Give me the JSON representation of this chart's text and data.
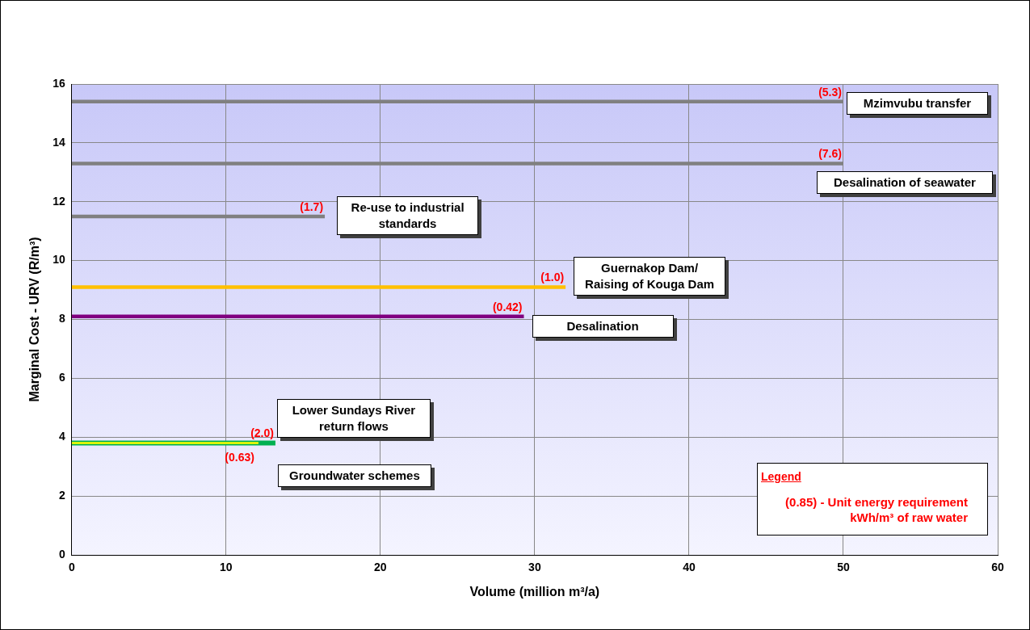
{
  "chart_data": {
    "type": "line",
    "xlabel": "Volume (million m³/a)",
    "ylabel": "Marginal Cost - URV (R/m³)",
    "xlim": [
      0,
      60
    ],
    "xticks": [
      0,
      10,
      20,
      30,
      40,
      50,
      60
    ],
    "ylim": [
      0,
      16
    ],
    "yticks": [
      0,
      2,
      4,
      6,
      8,
      10,
      12,
      14,
      16
    ],
    "grid": true,
    "legend": false,
    "marker": "none",
    "line_style": "solid",
    "series": [
      {
        "name": "Mzimvubu transfer",
        "color": "#808080",
        "x": [
          0,
          50
        ],
        "values": [
          15.4,
          15.4
        ]
      },
      {
        "name": "Desalination of seawater",
        "color": "#808080",
        "x": [
          0,
          50
        ],
        "values": [
          13.3,
          13.3
        ]
      },
      {
        "name": "Re-use to industrial standards",
        "color": "#808080",
        "x": [
          0,
          16.4
        ],
        "values": [
          11.5,
          11.5
        ]
      },
      {
        "name": "Guernakop Dam/ Raising of Kouga Dam",
        "color": "#ffc000",
        "x": [
          0,
          32
        ],
        "values": [
          9.1,
          9.1
        ]
      },
      {
        "name": "Desalination",
        "color": "#800080",
        "x": [
          0,
          29.3
        ],
        "values": [
          8.1,
          8.1
        ]
      },
      {
        "name": "Lower Sundays River return flows",
        "color": "#00b050",
        "x": [
          0,
          13.2
        ],
        "values": [
          3.8,
          3.8
        ]
      },
      {
        "name": "Groundwater schemes",
        "color": "#ffff00",
        "x": [
          0,
          12.1
        ],
        "values": [
          3.8,
          3.8
        ]
      }
    ],
    "annotations": [
      {
        "text": "(5.3)",
        "x": 50,
        "y": 15.4
      },
      {
        "text": "(7.6)",
        "x": 50,
        "y": 13.3
      },
      {
        "text": "(1.7)",
        "x": 16.4,
        "y": 11.5
      },
      {
        "text": "(1.0)",
        "x": 32,
        "y": 9.1
      },
      {
        "text": "(0.42)",
        "x": 29.3,
        "y": 8.1
      },
      {
        "text": "(2.0)",
        "x": 13.2,
        "y": 3.8
      },
      {
        "text": "(0.63)",
        "x": 12.1,
        "y": 3.8
      },
      "Legend",
      "(0.85) - Unit energy requirement kWh/m³ of raw water"
    ]
  }
}
